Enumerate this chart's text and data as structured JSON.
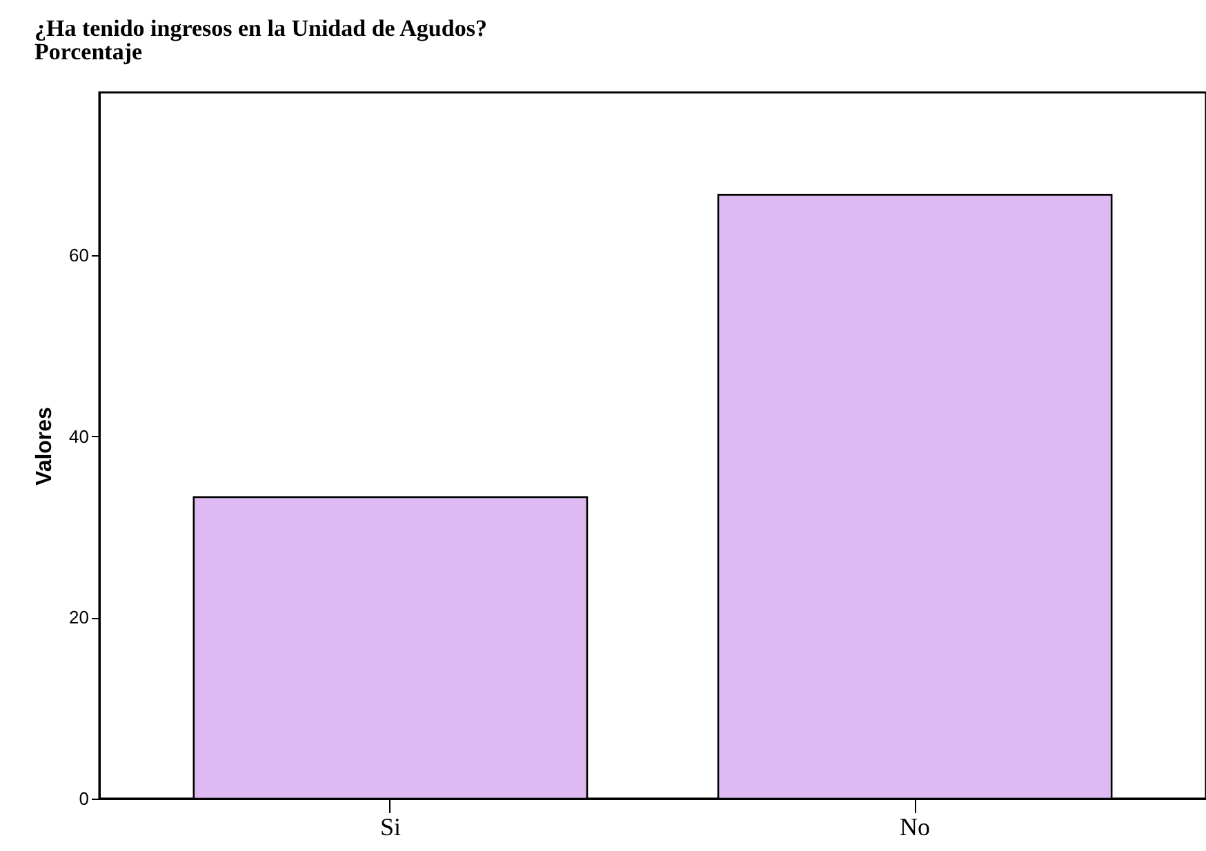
{
  "chart_data": {
    "type": "bar",
    "title": "¿Ha tenido ingresos en la Unidad de Agudos?",
    "subtitle": "Porcentaje",
    "ylabel": "Valores",
    "categories": [
      "Si",
      "No"
    ],
    "values": [
      33.3,
      66.7
    ],
    "color": "#dfbaf2",
    "ylim": [
      0,
      78
    ],
    "yticks": [
      0,
      20,
      40,
      60
    ],
    "grid": false
  }
}
